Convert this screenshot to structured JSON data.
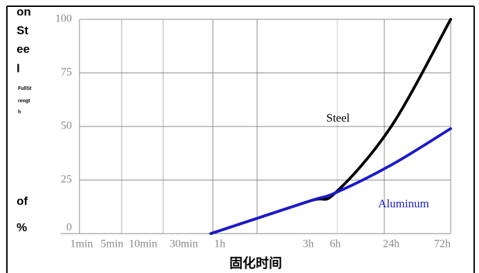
{
  "chart_data": {
    "type": "line",
    "x_label": "固化时间",
    "y_label_lines": [
      "on",
      "St",
      "ee",
      "l",
      "FullSt",
      "rengt",
      "h",
      "of",
      "%"
    ],
    "categories": [
      "1min",
      "5min",
      "10min",
      "30min",
      "1h",
      "3h",
      "6h",
      "24h",
      "72h"
    ],
    "series": [
      {
        "name": "Steel",
        "color": "#000000",
        "values": [
          null,
          null,
          null,
          null,
          0,
          15,
          19,
          50,
          100
        ]
      },
      {
        "name": "Aluminum",
        "color": "#1a1acc",
        "values": [
          null,
          null,
          null,
          null,
          0,
          15,
          19,
          32,
          49
        ]
      }
    ],
    "ylim": [
      0,
      100
    ],
    "yticks": [
      0,
      25,
      50,
      75,
      100
    ],
    "grid": true
  }
}
